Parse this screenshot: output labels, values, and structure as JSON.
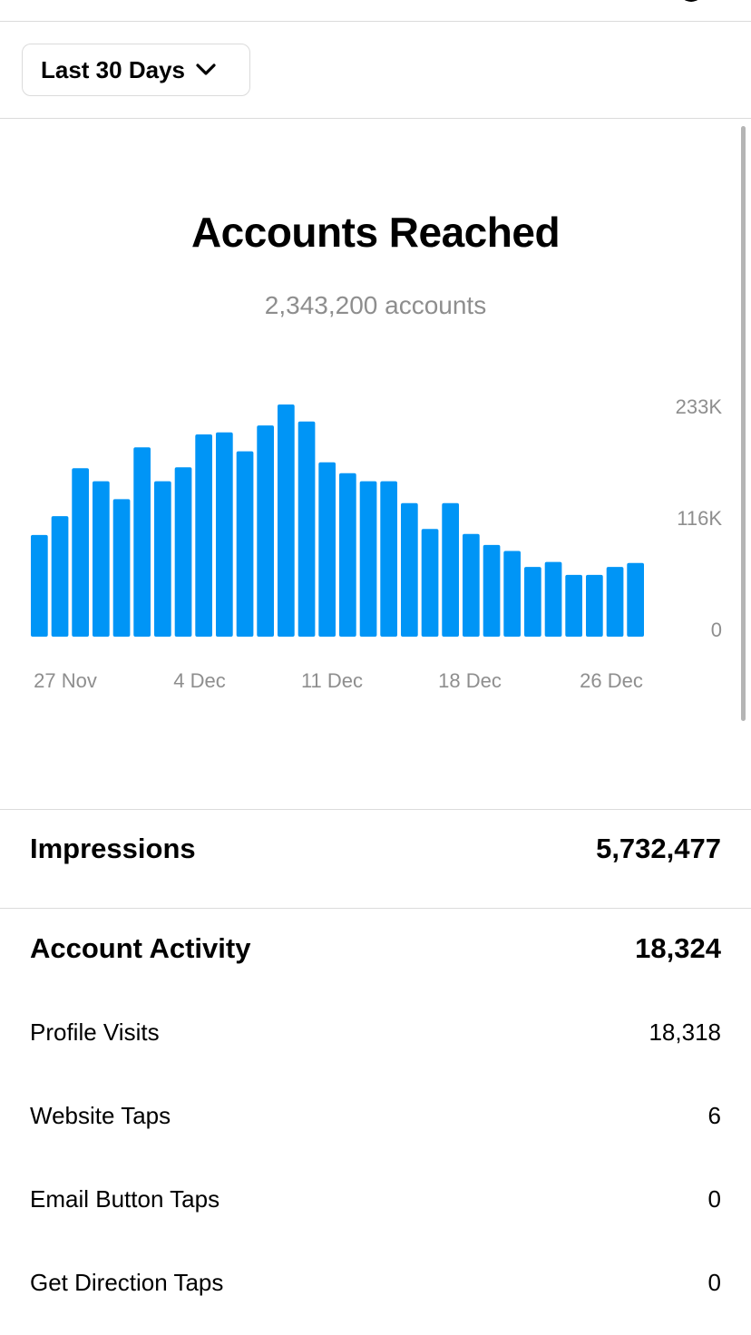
{
  "filter": {
    "label": "Last 30 Days"
  },
  "chart_data": {
    "type": "bar",
    "title": "Accounts Reached",
    "subtitle": "2,343,200 accounts",
    "x_tick_labels": [
      "27 Nov",
      "4 Dec",
      "11 Dec",
      "18 Dec",
      "26 Dec"
    ],
    "y_tick_labels": [
      "233K",
      "116K",
      "0"
    ],
    "ylim": [
      0,
      233000
    ],
    "values": [
      102000,
      121000,
      169000,
      156000,
      138000,
      190000,
      156000,
      170000,
      203000,
      205000,
      186000,
      212000,
      233000,
      216000,
      175000,
      164000,
      156000,
      156000,
      134000,
      108000,
      134000,
      103000,
      92000,
      86000,
      70000,
      75000,
      62000,
      62000,
      70000,
      74000
    ],
    "color": "#0095f6",
    "grid": false
  },
  "metrics": {
    "impressions": {
      "label": "Impressions",
      "value": "5,732,477"
    },
    "account_activity": {
      "label": "Account Activity",
      "value": "18,324"
    },
    "profile_visits": {
      "label": "Profile Visits",
      "value": "18,318"
    },
    "website_taps": {
      "label": "Website Taps",
      "value": "6"
    },
    "email_taps": {
      "label": "Email Button Taps",
      "value": "0"
    },
    "direction_taps": {
      "label": "Get Direction Taps",
      "value": "0"
    }
  }
}
